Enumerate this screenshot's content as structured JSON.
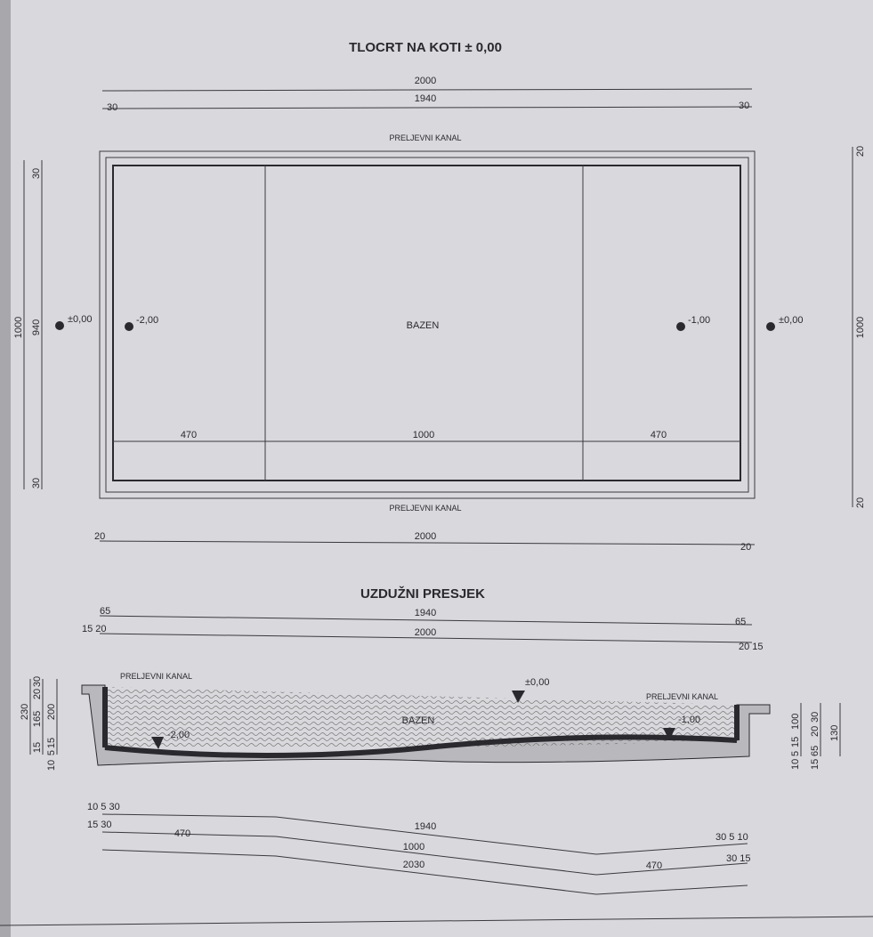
{
  "plan": {
    "title": "TLOCRT NA KOTI  ± 0,00",
    "top_dims": {
      "overall": "2000",
      "inner": "1940",
      "left_edge": "30",
      "right_edge": "30"
    },
    "left_dims": {
      "overall": "1000",
      "inner": "940",
      "top_edge": "30",
      "bottom_edge": "30"
    },
    "right_dims": {
      "overall": "1000",
      "top_edge": "20",
      "bottom_edge": "20"
    },
    "bottom_dims": {
      "overall": "2000",
      "left_edge": "20",
      "right_edge": "20"
    },
    "channel_top": "PRELJEVNI KANAL",
    "channel_bottom": "PRELJEVNI KANAL",
    "pool_label": "BAZEN",
    "segments": [
      "470",
      "1000",
      "470"
    ],
    "levels": {
      "outer_left": "±0,00",
      "inner_left": "-2,00",
      "inner_right": "-1,00",
      "outer_right": "±0,00"
    }
  },
  "section": {
    "title": "UZDUŽNI PRESJEK",
    "top_dims": {
      "row1_left": "65",
      "row1_mid": "1940",
      "row1_right": "65",
      "row2_left": "15 20",
      "row2_mid": "2000",
      "row2_right": "20 15"
    },
    "channel_left": "PRELJEVNI KANAL",
    "channel_right": "PRELJEVNI KANAL",
    "pool_label": "BAZEN",
    "levels": {
      "water": "±0,00",
      "deep": "-2,00",
      "shallow": "-1,00"
    },
    "left_dims": [
      "230",
      "165",
      "20",
      "30",
      "200",
      "15",
      "10",
      "5",
      "15"
    ],
    "right_dims": [
      "10",
      "5",
      "15",
      "100",
      "15",
      "65",
      "20",
      "30",
      "130"
    ],
    "bottom_dims": {
      "row1_left": "10 5  30",
      "row1_mid": "1940",
      "row1_right": "30  5 10",
      "row2_left": "15  30",
      "row2_a": "470",
      "row2_b": "1000",
      "row2_c": "470",
      "row2_right": "30  15",
      "row3": "2030"
    }
  },
  "colors": {
    "paper": "#d9d8dc",
    "ink": "#2a2a2e",
    "wall": "#4a4a4e"
  }
}
